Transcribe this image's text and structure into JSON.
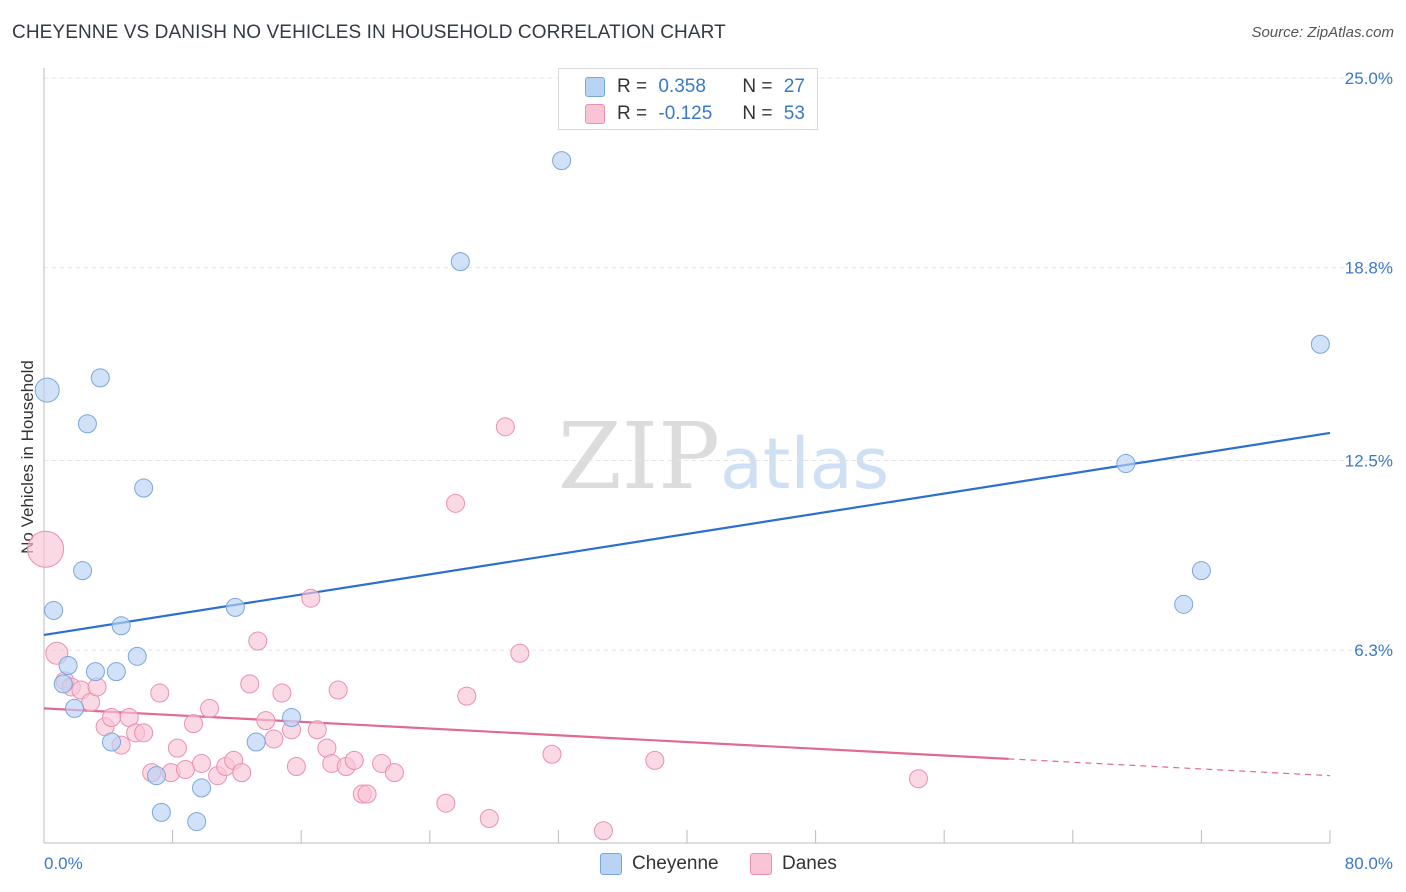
{
  "title": "CHEYENNE VS DANISH NO VEHICLES IN HOUSEHOLD CORRELATION CHART",
  "source": "Source: ZipAtlas.com",
  "watermark": {
    "zip": "ZIP",
    "atlas": "atlas"
  },
  "colors": {
    "cheyenne_fill": "#b9d3f5",
    "cheyenne_stroke": "#7aa6de",
    "cheyenne_line": "#2c6fcf",
    "danes_fill": "#f9c4d6",
    "danes_stroke": "#ea90b0",
    "danes_line": "#e06a95",
    "axis_text": "#3a78c8",
    "grid": "#e3e3e3"
  },
  "legend": {
    "rows": [
      {
        "r_label": "R =",
        "r_value": "0.358",
        "n_label": "N =",
        "n_value": "27"
      },
      {
        "r_label": "R =",
        "r_value": "-0.125",
        "n_label": "N =",
        "n_value": "53"
      }
    ]
  },
  "chart_data": {
    "type": "scatter",
    "title": "CHEYENNE VS DANISH NO VEHICLES IN HOUSEHOLD CORRELATION CHART",
    "xlabel": "",
    "ylabel": "No Vehicles in Household",
    "xlim": [
      0,
      80
    ],
    "ylim": [
      0,
      25
    ],
    "x_tick_labels": [
      "0.0%",
      "80.0%"
    ],
    "y_ticks": [
      6.3,
      12.5,
      18.8,
      25.0
    ],
    "y_tick_labels": [
      "6.3%",
      "12.5%",
      "18.8%",
      "25.0%"
    ],
    "grid": true,
    "legend_position": "bottom",
    "series": [
      {
        "name": "Cheyenne",
        "points": [
          [
            0.2,
            14.8
          ],
          [
            0.6,
            7.6
          ],
          [
            1.5,
            5.8
          ],
          [
            1.2,
            5.2
          ],
          [
            1.9,
            4.4
          ],
          [
            2.4,
            8.9
          ],
          [
            2.7,
            13.7
          ],
          [
            3.5,
            15.2
          ],
          [
            3.2,
            5.6
          ],
          [
            4.2,
            3.3
          ],
          [
            4.5,
            5.6
          ],
          [
            4.8,
            7.1
          ],
          [
            5.8,
            6.1
          ],
          [
            6.2,
            11.6
          ],
          [
            7.0,
            2.2
          ],
          [
            7.3,
            1.0
          ],
          [
            9.5,
            0.7
          ],
          [
            9.8,
            1.8
          ],
          [
            11.9,
            7.7
          ],
          [
            13.2,
            3.3
          ],
          [
            15.4,
            4.1
          ],
          [
            25.9,
            19.0
          ],
          [
            32.2,
            22.3
          ],
          [
            67.3,
            12.4
          ],
          [
            70.9,
            7.8
          ],
          [
            72.0,
            8.9
          ],
          [
            79.4,
            16.3
          ]
        ],
        "sizes": [
          12,
          9,
          9,
          9,
          9,
          9,
          9,
          9,
          9,
          9,
          9,
          9,
          9,
          9,
          9,
          9,
          9,
          9,
          9,
          9,
          9,
          9,
          9,
          9,
          9,
          9,
          9
        ],
        "trend": {
          "x": [
            0,
            80
          ],
          "y": [
            6.8,
            13.4
          ]
        }
      },
      {
        "name": "Danes",
        "points": [
          [
            0.1,
            9.6
          ],
          [
            0.8,
            6.2
          ],
          [
            1.3,
            5.3
          ],
          [
            1.7,
            5.1
          ],
          [
            2.3,
            5.0
          ],
          [
            2.9,
            4.6
          ],
          [
            3.3,
            5.1
          ],
          [
            3.8,
            3.8
          ],
          [
            4.2,
            4.1
          ],
          [
            4.8,
            3.2
          ],
          [
            5.3,
            4.1
          ],
          [
            5.7,
            3.6
          ],
          [
            6.2,
            3.6
          ],
          [
            6.7,
            2.3
          ],
          [
            7.2,
            4.9
          ],
          [
            7.9,
            2.3
          ],
          [
            8.3,
            3.1
          ],
          [
            8.8,
            2.4
          ],
          [
            9.3,
            3.9
          ],
          [
            9.8,
            2.6
          ],
          [
            10.3,
            4.4
          ],
          [
            10.8,
            2.2
          ],
          [
            11.3,
            2.5
          ],
          [
            11.8,
            2.7
          ],
          [
            12.3,
            2.3
          ],
          [
            12.8,
            5.2
          ],
          [
            13.3,
            6.6
          ],
          [
            13.8,
            4.0
          ],
          [
            14.3,
            3.4
          ],
          [
            14.8,
            4.9
          ],
          [
            15.4,
            3.7
          ],
          [
            15.7,
            2.5
          ],
          [
            16.6,
            8.0
          ],
          [
            17.0,
            3.7
          ],
          [
            17.6,
            3.1
          ],
          [
            17.9,
            2.6
          ],
          [
            18.3,
            5.0
          ],
          [
            18.8,
            2.5
          ],
          [
            19.3,
            2.7
          ],
          [
            19.8,
            1.6
          ],
          [
            20.1,
            1.6
          ],
          [
            21.0,
            2.6
          ],
          [
            21.8,
            2.3
          ],
          [
            25.0,
            1.3
          ],
          [
            25.6,
            11.1
          ],
          [
            26.3,
            4.8
          ],
          [
            27.7,
            0.8
          ],
          [
            28.7,
            13.6
          ],
          [
            29.6,
            6.2
          ],
          [
            31.6,
            2.9
          ],
          [
            34.8,
            0.4
          ],
          [
            38.0,
            2.7
          ],
          [
            54.4,
            2.1
          ]
        ],
        "sizes": [
          18,
          11,
          9,
          9,
          9,
          9,
          9,
          9,
          9,
          9,
          9,
          9,
          9,
          9,
          9,
          9,
          9,
          9,
          9,
          9,
          9,
          9,
          9,
          9,
          9,
          9,
          9,
          9,
          9,
          9,
          9,
          9,
          9,
          9,
          9,
          9,
          9,
          9,
          9,
          9,
          9,
          9,
          9,
          9,
          9,
          9,
          9,
          9,
          9,
          9,
          9,
          9,
          9
        ],
        "trend": {
          "x": [
            0,
            60
          ],
          "y": [
            4.4,
            2.75
          ]
        },
        "trend_dashed": {
          "x": [
            60,
            80
          ],
          "y": [
            2.75,
            2.2
          ]
        }
      }
    ]
  }
}
